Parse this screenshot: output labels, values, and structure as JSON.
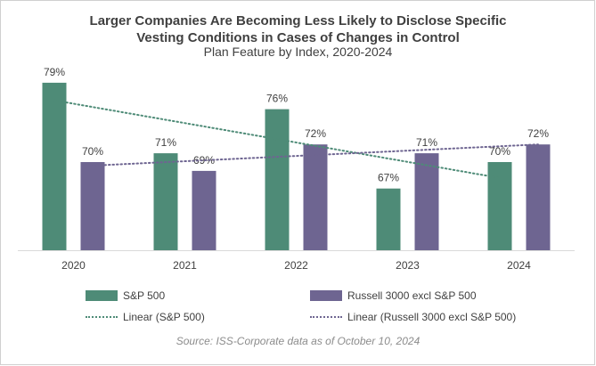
{
  "chart_data": {
    "type": "bar",
    "title_lines": [
      "Larger Companies Are Becoming Less Likely to Disclose Specific",
      "Vesting Conditions in Cases of Changes in Control"
    ],
    "subtitle": "Plan Feature by Index, 2020-2024",
    "categories": [
      "2020",
      "2021",
      "2022",
      "2023",
      "2024"
    ],
    "series": [
      {
        "name": "S&P 500",
        "values": [
          79,
          71,
          76,
          67,
          70
        ],
        "labels": [
          "79%",
          "71%",
          "76%",
          "67%",
          "70%"
        ],
        "color": "#4e8b77"
      },
      {
        "name": "Russell 3000 excl S&P 500",
        "values": [
          70,
          69,
          72,
          71,
          72
        ],
        "labels": [
          "70%",
          "69%",
          "72%",
          "71%",
          "72%"
        ],
        "color": "#6e6591"
      }
    ],
    "trendlines": [
      {
        "name": "Linear (S&P 500)",
        "series": "S&P 500",
        "style": "dotted",
        "color": "#4e8b77"
      },
      {
        "name": "Linear (Russell 3000 excl S&P 500)",
        "series": "Russell 3000 excl S&P 500",
        "style": "dotted",
        "color": "#6e6591"
      }
    ],
    "ylim": [
      60,
      80
    ],
    "grid": false,
    "legend_position": "bottom",
    "source": "Source: ISS-Corporate data as of October 10, 2024"
  }
}
